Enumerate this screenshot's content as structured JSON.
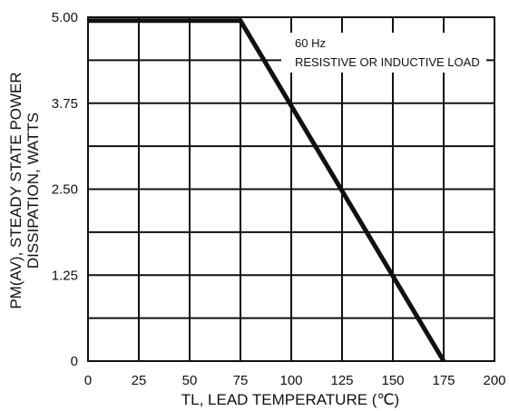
{
  "chart_data": {
    "type": "line",
    "xlabel": "TL, LEAD TEMPERATURE (℃)",
    "ylabel": [
      "PM(AV), STEADY STATE POWER",
      "DISSIPATION, WATTS"
    ],
    "xlim": [
      0,
      200
    ],
    "ylim": [
      0,
      5
    ],
    "x_ticks": [
      0,
      25,
      50,
      75,
      100,
      125,
      150,
      175,
      200
    ],
    "x_tick_labels": [
      "0",
      "25",
      "50",
      "75",
      "100",
      "125",
      "150",
      "175",
      "200"
    ],
    "y_ticks": [
      0,
      1.25,
      2.5,
      3.75,
      5
    ],
    "y_tick_labels": [
      "0",
      "1.25",
      "2.50",
      "3.75",
      "5.00"
    ],
    "grid": true,
    "x": [
      0,
      75,
      175
    ],
    "y": [
      4.95,
      4.95,
      0
    ],
    "annotations": [
      "60 Hz",
      "RESISTIVE OR INDUCTIVE LOAD"
    ],
    "line_color": "#111111",
    "grid_color": "#111111"
  }
}
